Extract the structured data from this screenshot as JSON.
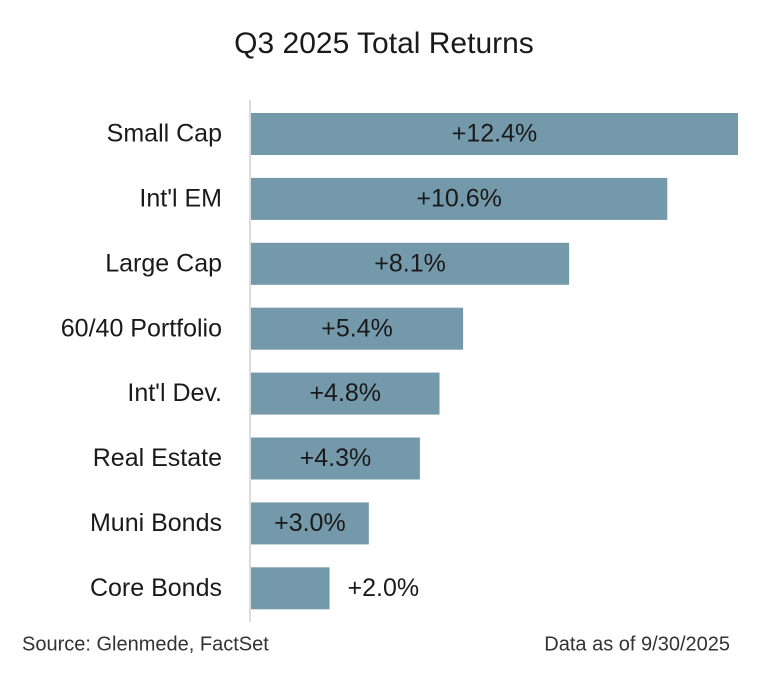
{
  "chart_data": {
    "type": "bar",
    "orientation": "horizontal",
    "title": "Q3 2025 Total Returns",
    "categories": [
      "Small Cap",
      "Int'l EM",
      "Large Cap",
      "60/40 Portfolio",
      "Int'l Dev.",
      "Real Estate",
      "Muni Bonds",
      "Core Bonds"
    ],
    "values": [
      12.4,
      10.6,
      8.1,
      5.4,
      4.8,
      4.3,
      3.0,
      2.0
    ],
    "value_labels": [
      "+12.4%",
      "+10.6%",
      "+8.1%",
      "+5.4%",
      "+4.8%",
      "+4.3%",
      "+3.0%",
      "+2.0%"
    ],
    "color": "#7499aa",
    "source": "Source: Glenmede, FactSet",
    "note": "Data as of 9/30/2025"
  }
}
